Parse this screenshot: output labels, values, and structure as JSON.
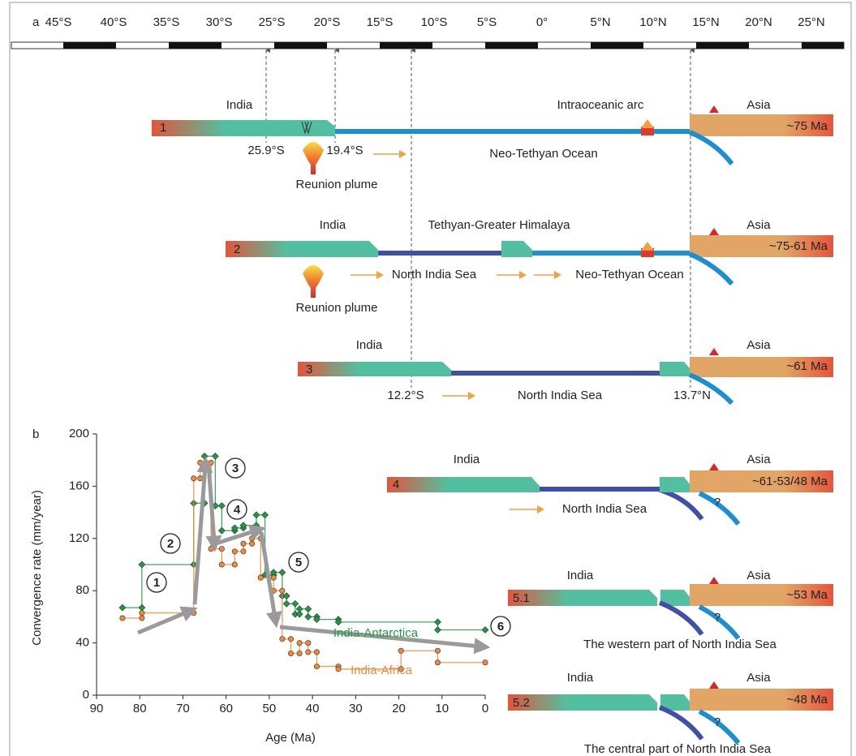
{
  "panel_a": {
    "label": "a",
    "latitudes": [
      "45°S",
      "40°S",
      "35°S",
      "30°S",
      "25°S",
      "20°S",
      "15°S",
      "10°S",
      "5°S",
      "0°",
      "5°N",
      "10°N",
      "15°N",
      "20°N",
      "25°N"
    ],
    "stages": [
      {
        "number": "1",
        "india": "India",
        "asia": "Asia",
        "age": "~75 Ma",
        "texts": [
          "Intraoceanic arc",
          "25.9°S",
          "19.4°S",
          "Reunion plume",
          "Neo-Tethyan Ocean"
        ]
      },
      {
        "number": "2",
        "india": "India",
        "asia": "Asia",
        "age": "~75-61 Ma",
        "texts": [
          "Tethyan-Greater Himalaya",
          "North India Sea",
          "Neo-Tethyan Ocean",
          "Reunion plume"
        ]
      },
      {
        "number": "3",
        "india": "India",
        "asia": "Asia",
        "age": "~61 Ma",
        "texts": [
          "12.2°S",
          "North India Sea",
          "13.7°N"
        ]
      },
      {
        "number": "4",
        "india": "India",
        "asia": "Asia",
        "age": "~61-53/48 Ma",
        "texts": [
          "North India Sea",
          "?"
        ]
      },
      {
        "number": "5.1",
        "india": "India",
        "asia": "Asia",
        "age": "~53 Ma",
        "texts": [
          "?",
          "The western part of North India Sea"
        ]
      },
      {
        "number": "5.2",
        "india": "India",
        "asia": "Asia",
        "age": "~48 Ma",
        "texts": [
          "?",
          "The central part of North India Sea"
        ]
      }
    ]
  },
  "chart_data": {
    "type": "line",
    "panel_label": "b",
    "xlabel": "Age (Ma)",
    "ylabel": "Convergence rate (mm/year)",
    "xlim": [
      90,
      0
    ],
    "ylim": [
      0,
      200
    ],
    "xticks": [
      90,
      80,
      70,
      60,
      50,
      40,
      30,
      20,
      10,
      0
    ],
    "yticks": [
      0,
      40,
      80,
      120,
      160,
      200
    ],
    "annotations": [
      "1",
      "2",
      "3",
      "4",
      "5",
      "6"
    ],
    "series": [
      {
        "name": "India-Antarctica",
        "color": "#1f9a43",
        "x": [
          84,
          79.5,
          79.5,
          67.5,
          67.5,
          65,
          65,
          62.5,
          62.5,
          61,
          61,
          58,
          58,
          56,
          56,
          53,
          53,
          51,
          51,
          49,
          49,
          47,
          47,
          46,
          46,
          44,
          44,
          43,
          43,
          41,
          41,
          39,
          39,
          34,
          34,
          11,
          11,
          0
        ],
        "values": [
          67,
          67,
          100,
          100,
          147,
          147,
          183,
          183,
          145,
          145,
          126,
          126,
          128,
          128,
          130,
          130,
          138,
          138,
          92,
          92,
          94,
          94,
          76,
          76,
          70,
          70,
          62,
          62,
          66,
          66,
          60,
          60,
          58,
          58,
          56,
          56,
          50,
          50
        ]
      },
      {
        "name": "India-Africa",
        "color": "#f0883a",
        "x": [
          84,
          79.5,
          79.5,
          67.5,
          67.5,
          66,
          66,
          63.5,
          63.5,
          61,
          61,
          58,
          58,
          56,
          56,
          54,
          54,
          52,
          52,
          49,
          49,
          47,
          47,
          45,
          45,
          43,
          43,
          41,
          41,
          39,
          39,
          34,
          34,
          19.5,
          19.5,
          11,
          11,
          0
        ],
        "values": [
          59,
          59,
          63,
          63,
          166,
          166,
          178,
          178,
          112,
          112,
          100,
          100,
          110,
          110,
          116,
          116,
          120,
          120,
          90,
          90,
          80,
          80,
          43,
          43,
          32,
          32,
          40,
          40,
          33,
          33,
          22,
          22,
          20,
          20,
          34,
          34,
          25,
          25
        ]
      }
    ]
  }
}
